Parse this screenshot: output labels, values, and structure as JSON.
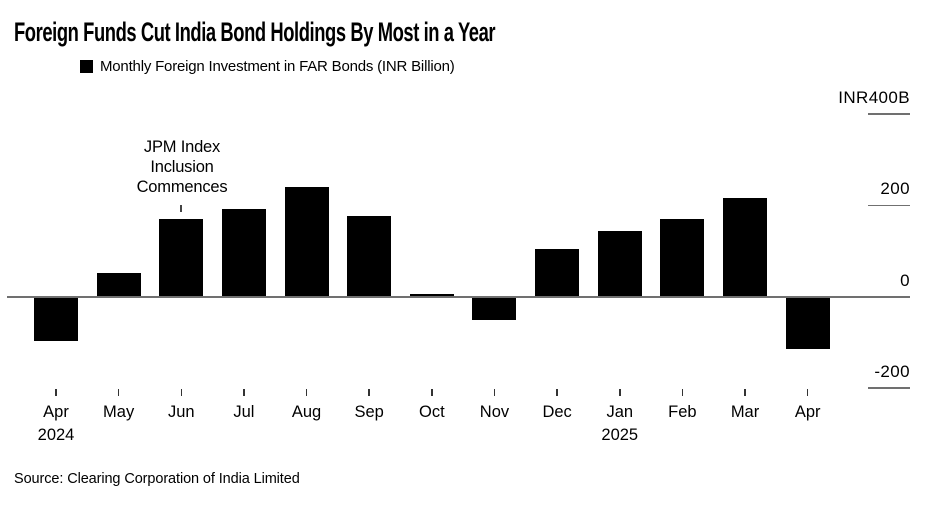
{
  "header": {
    "title": "Foreign Funds Cut India Bond Holdings By Most in a Year"
  },
  "legend": {
    "marker_color": "#000000",
    "label": "Monthly Foreign Investment in FAR Bonds (INR Billion)"
  },
  "annotation": {
    "text": "JPM Index\nInclusion\nCommences",
    "points_to": "Jun 2024"
  },
  "source": "Source: Clearing Corporation of India Limited",
  "colors": {
    "bar": "#000000",
    "axis": "#707070",
    "text": "#000000",
    "background": "#ffffff"
  },
  "chart_data": {
    "type": "bar",
    "title": "Foreign Funds Cut India Bond Holdings By Most in a Year",
    "series_name": "Monthly Foreign Investment in FAR Bonds",
    "unit": "INR Billion",
    "categories": [
      "Apr 2024",
      "May 2024",
      "Jun 2024",
      "Jul 2024",
      "Aug 2024",
      "Sep 2024",
      "Oct 2024",
      "Nov 2024",
      "Dec 2024",
      "Jan 2025",
      "Feb 2025",
      "Mar 2025",
      "Apr 2025"
    ],
    "values": [
      -95,
      52,
      172,
      192,
      241,
      178,
      6,
      -50,
      105,
      145,
      171,
      217,
      -113
    ],
    "x_ticks": [
      {
        "label": "Apr",
        "year": "2024"
      },
      {
        "label": "May"
      },
      {
        "label": "Jun"
      },
      {
        "label": "Jul"
      },
      {
        "label": "Aug"
      },
      {
        "label": "Sep"
      },
      {
        "label": "Oct"
      },
      {
        "label": "Nov"
      },
      {
        "label": "Dec"
      },
      {
        "label": "Jan",
        "year": "2025"
      },
      {
        "label": "Feb"
      },
      {
        "label": "Mar"
      },
      {
        "label": "Apr"
      }
    ],
    "y_axis": {
      "ticks": [
        {
          "label": "INR400B",
          "value": 400
        },
        {
          "label": "200",
          "value": 200
        },
        {
          "label": "0",
          "value": 0
        },
        {
          "label": "-200",
          "value": -200
        }
      ],
      "range": [
        -250,
        430
      ]
    },
    "grid": false,
    "legend_position": "top-left",
    "annotation": {
      "text": "JPM Index Inclusion Commences",
      "x": "Jun 2024",
      "y": 215
    }
  }
}
